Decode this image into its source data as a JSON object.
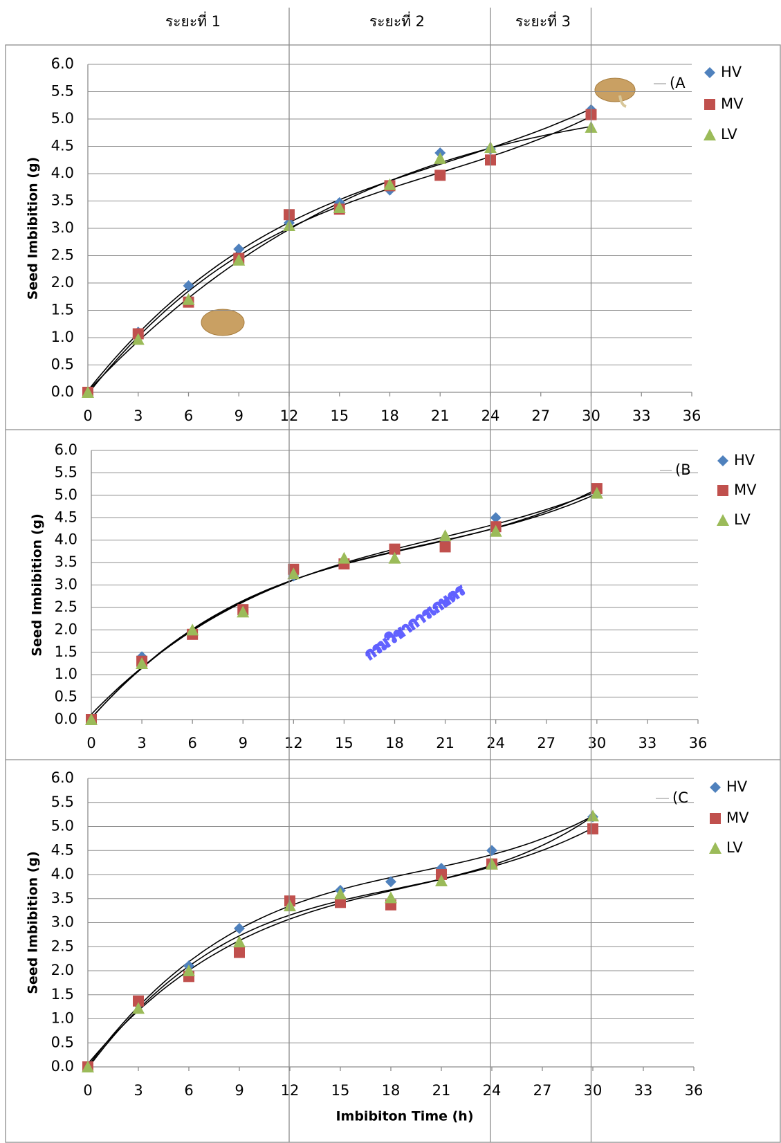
{
  "phase_labels": [
    "ระยะที่ 1",
    "ระยะที่ 2",
    "ระยะที่ 3"
  ],
  "phase_boundaries": [
    12,
    24,
    30
  ],
  "watermark": "กรมวิชาการเกษตร",
  "chart_data": [
    {
      "type": "scatter",
      "panel_label": "(A",
      "y_label": "Seed  Imbibition (g)",
      "trendline": "polynomial",
      "trendline_order": 3,
      "x": [
        0,
        3,
        6,
        9,
        12,
        15,
        18,
        21,
        24,
        30
      ],
      "series": [
        {
          "name": "HV",
          "color": "#4f81bd",
          "marker": "diamond",
          "values": [
            0,
            1.1,
            1.95,
            2.62,
            3.1,
            3.47,
            3.7,
            4.38,
            4.45,
            5.17
          ]
        },
        {
          "name": "MV",
          "color": "#c0504d",
          "marker": "square",
          "values": [
            0,
            1.07,
            1.65,
            2.45,
            3.25,
            3.35,
            3.78,
            3.97,
            4.25,
            5.08
          ]
        },
        {
          "name": "LV",
          "color": "#9bbb59",
          "marker": "triangle",
          "values": [
            0,
            0.97,
            1.7,
            2.42,
            3.05,
            3.38,
            3.8,
            4.28,
            4.48,
            4.85
          ]
        }
      ],
      "xlim": [
        0,
        36
      ],
      "xticks": [
        0,
        3,
        6,
        9,
        12,
        15,
        18,
        21,
        24,
        27,
        30,
        33,
        36
      ],
      "ylim": [
        0,
        6
      ],
      "yticks": [
        {
          "value": 0,
          "label": "0.0"
        },
        0.5,
        {
          "value": 1,
          "label": "1.0"
        },
        1.5,
        {
          "value": 2,
          "label": "2.0"
        },
        2.5,
        {
          "value": 3,
          "label": "3.0"
        },
        3.5,
        {
          "value": 4,
          "label": "4.0"
        },
        4.5,
        {
          "value": 5,
          "label": "5.0"
        },
        5.5,
        {
          "value": 6,
          "label": "6.0"
        }
      ],
      "grid": true
    },
    {
      "type": "scatter",
      "panel_label": "(B",
      "y_label": "Seed Imbibition (g)",
      "trendline": "polynomial",
      "trendline_order": 3,
      "x": [
        0,
        3,
        6,
        9,
        12,
        15,
        18,
        21,
        24,
        30
      ],
      "series": [
        {
          "name": "HV",
          "color": "#4f81bd",
          "marker": "diamond",
          "values": [
            0,
            1.4,
            1.95,
            2.45,
            3.2,
            3.5,
            3.75,
            4.0,
            4.5,
            5.05
          ]
        },
        {
          "name": "MV",
          "color": "#c0504d",
          "marker": "square",
          "values": [
            0,
            1.3,
            1.9,
            2.45,
            3.35,
            3.47,
            3.8,
            3.85,
            4.3,
            5.15
          ]
        },
        {
          "name": "LV",
          "color": "#9bbb59",
          "marker": "triangle",
          "values": [
            0,
            1.25,
            2.0,
            2.4,
            3.25,
            3.6,
            3.6,
            4.1,
            4.2,
            5.05
          ]
        }
      ],
      "xlim": [
        0,
        36
      ],
      "xticks": [
        0,
        3,
        6,
        9,
        12,
        15,
        18,
        21,
        24,
        27,
        30,
        33,
        36
      ],
      "ylim": [
        0,
        6
      ],
      "yticks": [
        {
          "value": 0,
          "label": "0.0"
        },
        0.5,
        {
          "value": 1,
          "label": "1.0"
        },
        1.5,
        {
          "value": 2,
          "label": "2.0"
        },
        2.5,
        {
          "value": 3,
          "label": "3.0"
        },
        3.5,
        {
          "value": 4,
          "label": "4.0"
        },
        4.5,
        {
          "value": 5,
          "label": "5.0"
        },
        5.5,
        {
          "value": 6,
          "label": "6.0"
        }
      ],
      "grid": true
    },
    {
      "type": "scatter",
      "panel_label": "(C",
      "y_label": "Seed Imbibition (g)",
      "x_label": "Imbibiton Time (h)",
      "trendline": "polynomial",
      "trendline_order": 3,
      "x": [
        0,
        3,
        6,
        9,
        12,
        15,
        18,
        21,
        24,
        30
      ],
      "series": [
        {
          "name": "HV",
          "color": "#4f81bd",
          "marker": "diamond",
          "values": [
            0,
            1.3,
            2.1,
            2.88,
            3.45,
            3.67,
            3.85,
            4.13,
            4.5,
            5.2
          ]
        },
        {
          "name": "MV",
          "color": "#c0504d",
          "marker": "square",
          "values": [
            0,
            1.37,
            1.88,
            2.38,
            3.45,
            3.42,
            3.37,
            4.0,
            4.22,
            4.95
          ]
        },
        {
          "name": "LV",
          "color": "#9bbb59",
          "marker": "triangle",
          "values": [
            0,
            1.22,
            2.0,
            2.6,
            3.35,
            3.6,
            3.52,
            3.87,
            4.22,
            5.22
          ]
        }
      ],
      "xlim": [
        0,
        36
      ],
      "xticks": [
        0,
        3,
        6,
        9,
        12,
        15,
        18,
        21,
        24,
        27,
        30,
        33,
        36
      ],
      "ylim": [
        0,
        6
      ],
      "yticks": [
        {
          "value": 0,
          "label": "0.0"
        },
        0.5,
        {
          "value": 1,
          "label": "1.0"
        },
        1.5,
        {
          "value": 2,
          "label": "2.0"
        },
        2.5,
        {
          "value": 3,
          "label": "3.0"
        },
        3.5,
        {
          "value": 4,
          "label": "4.0"
        },
        4.5,
        {
          "value": 5,
          "label": "5.0"
        },
        5.5,
        {
          "value": 6,
          "label": "6.0"
        }
      ],
      "grid": true
    }
  ]
}
